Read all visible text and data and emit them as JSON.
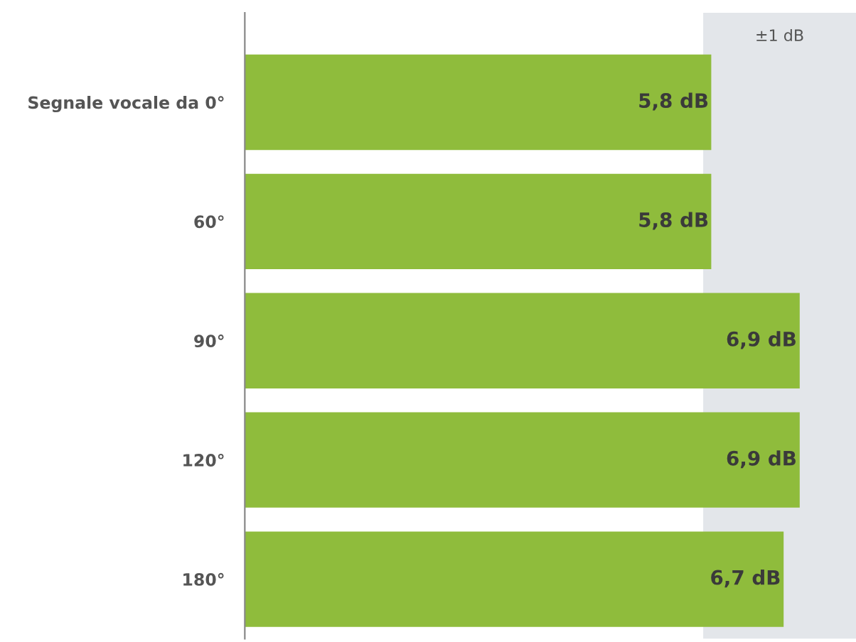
{
  "chart_data": {
    "type": "bar",
    "orientation": "horizontal",
    "categories": [
      "Segnale vocale da 0°",
      "60°",
      "90°",
      "120°",
      "180°"
    ],
    "series": [
      {
        "color": "#8fbc3c",
        "values": [
          5.8,
          5.8,
          6.9,
          6.9,
          6.7
        ],
        "value_labels": [
          "5,8 dB",
          "5,8 dB",
          "6,9 dB",
          "6,9 dB",
          "6,7 dB"
        ]
      }
    ],
    "bands": [
      {
        "axis": "x",
        "from": 5.7,
        "to": 7.6,
        "label": "±1 dB",
        "color": "#e3e6ea"
      }
    ],
    "grid": false,
    "legend": false,
    "tick_labels": "y"
  }
}
